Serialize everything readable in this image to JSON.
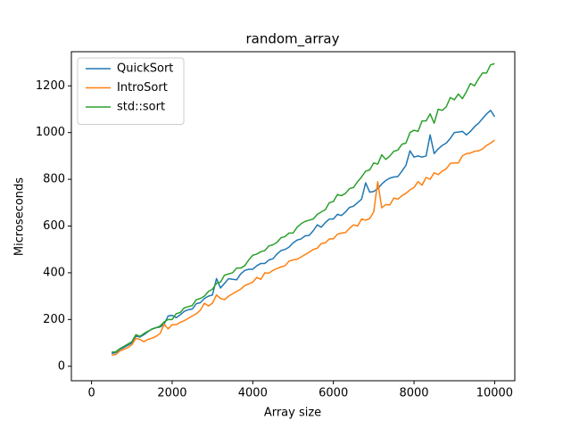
{
  "chart_data": {
    "type": "line",
    "title": "random_array",
    "x_label": "Array size",
    "y_label": "Microseconds",
    "x": [
      500,
      600,
      700,
      800,
      900,
      1000,
      1100,
      1200,
      1300,
      1400,
      1500,
      1600,
      1700,
      1800,
      1900,
      2000,
      2100,
      2200,
      2300,
      2400,
      2500,
      2600,
      2700,
      2800,
      2900,
      3000,
      3100,
      3200,
      3300,
      3400,
      3500,
      3600,
      3700,
      3800,
      3900,
      4000,
      4100,
      4200,
      4300,
      4400,
      4500,
      4600,
      4700,
      4800,
      4900,
      5000,
      5100,
      5200,
      5300,
      5400,
      5500,
      5600,
      5700,
      5800,
      5900,
      6000,
      6100,
      6200,
      6300,
      6400,
      6500,
      6600,
      6700,
      6800,
      6900,
      7000,
      7100,
      7200,
      7300,
      7400,
      7500,
      7600,
      7700,
      7800,
      7900,
      8000,
      8100,
      8200,
      8300,
      8400,
      8500,
      8600,
      8700,
      8800,
      8900,
      9000,
      9100,
      9200,
      9300,
      9400,
      9500,
      9600,
      9700,
      9800,
      9900,
      10000
    ],
    "series": [
      {
        "name": "QuickSort",
        "color": "#1f77b4",
        "values": [
          55,
          58,
          72,
          80,
          90,
          100,
          130,
          125,
          135,
          148,
          160,
          165,
          168,
          180,
          215,
          218,
          208,
          220,
          235,
          242,
          245,
          268,
          272,
          290,
          300,
          305,
          375,
          335,
          355,
          375,
          372,
          370,
          395,
          410,
          415,
          415,
          430,
          440,
          440,
          455,
          460,
          480,
          495,
          500,
          510,
          528,
          540,
          545,
          558,
          560,
          580,
          605,
          595,
          615,
          630,
          630,
          650,
          645,
          660,
          680,
          685,
          700,
          715,
          785,
          745,
          748,
          760,
          780,
          795,
          805,
          810,
          812,
          835,
          860,
          922,
          895,
          900,
          895,
          900,
          990,
          910,
          930,
          945,
          955,
          975,
          1000,
          1002,
          1005,
          990,
          1005,
          1025,
          1040,
          1060,
          1080,
          1095,
          1068
        ]
      },
      {
        "name": "IntroSort",
        "color": "#ff7f0e",
        "values": [
          48,
          50,
          65,
          72,
          80,
          92,
          120,
          115,
          105,
          115,
          120,
          128,
          140,
          180,
          160,
          178,
          178,
          188,
          195,
          205,
          215,
          225,
          240,
          270,
          258,
          270,
          305,
          290,
          285,
          300,
          310,
          320,
          330,
          345,
          352,
          360,
          380,
          372,
          400,
          398,
          410,
          418,
          425,
          430,
          450,
          455,
          458,
          468,
          478,
          488,
          500,
          505,
          525,
          528,
          545,
          545,
          565,
          570,
          572,
          590,
          605,
          600,
          630,
          625,
          632,
          660,
          790,
          678,
          692,
          690,
          720,
          715,
          730,
          740,
          755,
          765,
          790,
          775,
          808,
          800,
          828,
          820,
          835,
          845,
          868,
          870,
          870,
          900,
          910,
          912,
          920,
          922,
          930,
          945,
          955,
          968
        ]
      },
      {
        "name": "std::sort",
        "color": "#2ca02c",
        "values": [
          60,
          62,
          75,
          85,
          95,
          105,
          135,
          128,
          140,
          150,
          158,
          165,
          172,
          190,
          200,
          200,
          225,
          230,
          250,
          255,
          260,
          285,
          290,
          300,
          320,
          330,
          355,
          360,
          390,
          395,
          400,
          420,
          420,
          430,
          455,
          475,
          480,
          490,
          495,
          515,
          520,
          530,
          550,
          555,
          570,
          570,
          595,
          610,
          620,
          625,
          630,
          650,
          660,
          670,
          700,
          705,
          735,
          730,
          740,
          760,
          765,
          790,
          810,
          835,
          840,
          870,
          865,
          905,
          885,
          900,
          920,
          925,
          950,
          955,
          1000,
          1010,
          1005,
          1050,
          1050,
          1080,
          1040,
          1100,
          1095,
          1110,
          1150,
          1140,
          1165,
          1145,
          1175,
          1210,
          1200,
          1230,
          1255,
          1255,
          1290,
          1295
        ]
      }
    ],
    "xlim": [
      -500,
      10500
    ],
    "ylim": [
      -62,
      1346
    ],
    "xticks": [
      0,
      2000,
      4000,
      6000,
      8000,
      10000
    ],
    "yticks": [
      0,
      200,
      400,
      600,
      800,
      1000,
      1200
    ],
    "legend": "upper left"
  }
}
